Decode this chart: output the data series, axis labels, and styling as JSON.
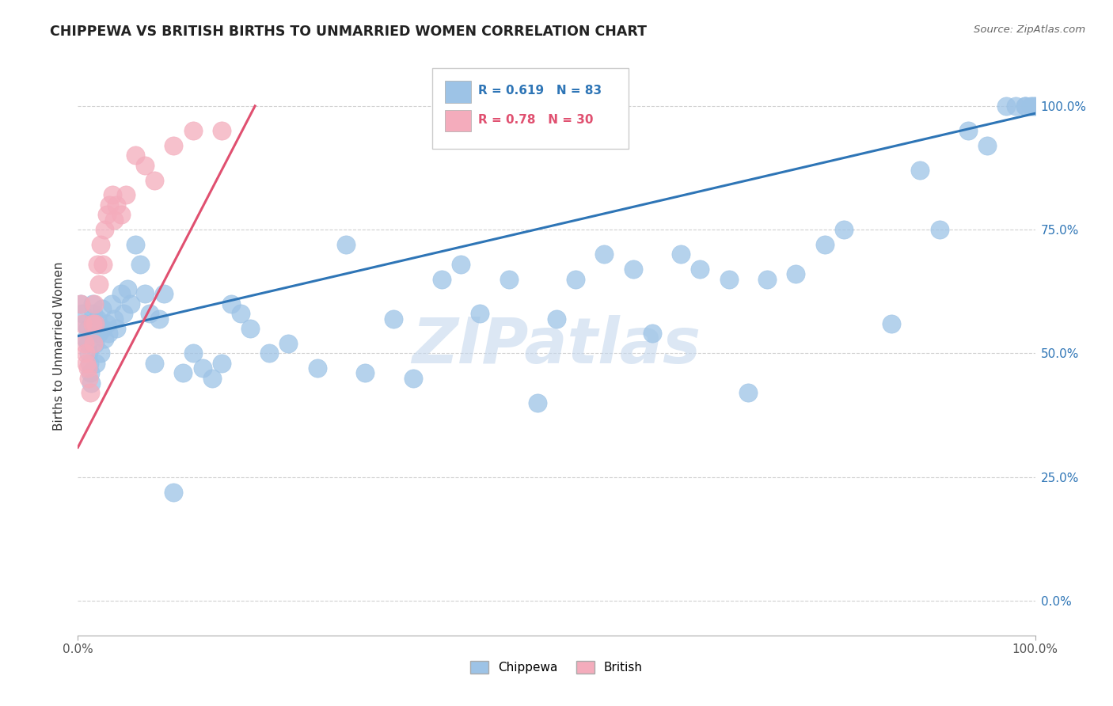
{
  "title": "CHIPPEWA VS BRITISH BIRTHS TO UNMARRIED WOMEN CORRELATION CHART",
  "source": "Source: ZipAtlas.com",
  "ylabel": "Births to Unmarried Women",
  "chippewa_color": "#9DC3E6",
  "british_color": "#F4ACBC",
  "chippewa_line_color": "#2E75B6",
  "british_line_color": "#E05070",
  "chippewa_R": 0.619,
  "chippewa_N": 83,
  "british_R": 0.78,
  "british_N": 30,
  "chippewa_line_x": [
    0.0,
    1.0
  ],
  "chippewa_line_y": [
    0.535,
    0.985
  ],
  "british_line_x": [
    0.0,
    0.185
  ],
  "british_line_y": [
    0.31,
    1.0
  ],
  "chippewa_x": [
    0.003,
    0.005,
    0.007,
    0.008,
    0.01,
    0.01,
    0.011,
    0.012,
    0.013,
    0.014,
    0.015,
    0.016,
    0.017,
    0.018,
    0.019,
    0.02,
    0.022,
    0.024,
    0.025,
    0.026,
    0.028,
    0.03,
    0.032,
    0.035,
    0.038,
    0.04,
    0.045,
    0.048,
    0.052,
    0.055,
    0.06,
    0.065,
    0.07,
    0.075,
    0.08,
    0.085,
    0.09,
    0.1,
    0.11,
    0.12,
    0.13,
    0.14,
    0.15,
    0.16,
    0.17,
    0.18,
    0.2,
    0.22,
    0.25,
    0.28,
    0.3,
    0.33,
    0.35,
    0.38,
    0.4,
    0.42,
    0.45,
    0.48,
    0.5,
    0.52,
    0.55,
    0.58,
    0.6,
    0.63,
    0.65,
    0.68,
    0.7,
    0.72,
    0.75,
    0.78,
    0.8,
    0.85,
    0.88,
    0.9,
    0.93,
    0.95,
    0.97,
    0.98,
    0.99,
    0.99,
    0.995,
    0.998,
    1.0
  ],
  "chippewa_y": [
    0.6,
    0.58,
    0.56,
    0.53,
    0.55,
    0.52,
    0.5,
    0.48,
    0.46,
    0.44,
    0.6,
    0.58,
    0.55,
    0.52,
    0.48,
    0.57,
    0.54,
    0.5,
    0.59,
    0.55,
    0.53,
    0.56,
    0.54,
    0.6,
    0.57,
    0.55,
    0.62,
    0.58,
    0.63,
    0.6,
    0.72,
    0.68,
    0.62,
    0.58,
    0.48,
    0.57,
    0.62,
    0.22,
    0.46,
    0.5,
    0.47,
    0.45,
    0.48,
    0.6,
    0.58,
    0.55,
    0.5,
    0.52,
    0.47,
    0.72,
    0.46,
    0.57,
    0.45,
    0.65,
    0.68,
    0.58,
    0.65,
    0.4,
    0.57,
    0.65,
    0.7,
    0.67,
    0.54,
    0.7,
    0.67,
    0.65,
    0.42,
    0.65,
    0.66,
    0.72,
    0.75,
    0.56,
    0.87,
    0.75,
    0.95,
    0.92,
    1.0,
    1.0,
    1.0,
    1.0,
    1.0,
    1.0,
    1.0
  ],
  "british_x": [
    0.003,
    0.005,
    0.007,
    0.008,
    0.009,
    0.01,
    0.011,
    0.013,
    0.015,
    0.016,
    0.017,
    0.018,
    0.02,
    0.022,
    0.024,
    0.026,
    0.028,
    0.03,
    0.033,
    0.036,
    0.038,
    0.04,
    0.045,
    0.05,
    0.06,
    0.07,
    0.08,
    0.1,
    0.12,
    0.15
  ],
  "british_y": [
    0.6,
    0.56,
    0.52,
    0.5,
    0.48,
    0.47,
    0.45,
    0.42,
    0.56,
    0.52,
    0.6,
    0.56,
    0.68,
    0.64,
    0.72,
    0.68,
    0.75,
    0.78,
    0.8,
    0.82,
    0.77,
    0.8,
    0.78,
    0.82,
    0.9,
    0.88,
    0.85,
    0.92,
    0.95,
    0.95
  ],
  "ytick_labels": [
    "0.0%",
    "25.0%",
    "50.0%",
    "75.0%",
    "100.0%"
  ],
  "yticks": [
    0.0,
    0.25,
    0.5,
    0.75,
    1.0
  ],
  "xlim": [
    0.0,
    1.0
  ],
  "ylim": [
    -0.07,
    1.1
  ]
}
